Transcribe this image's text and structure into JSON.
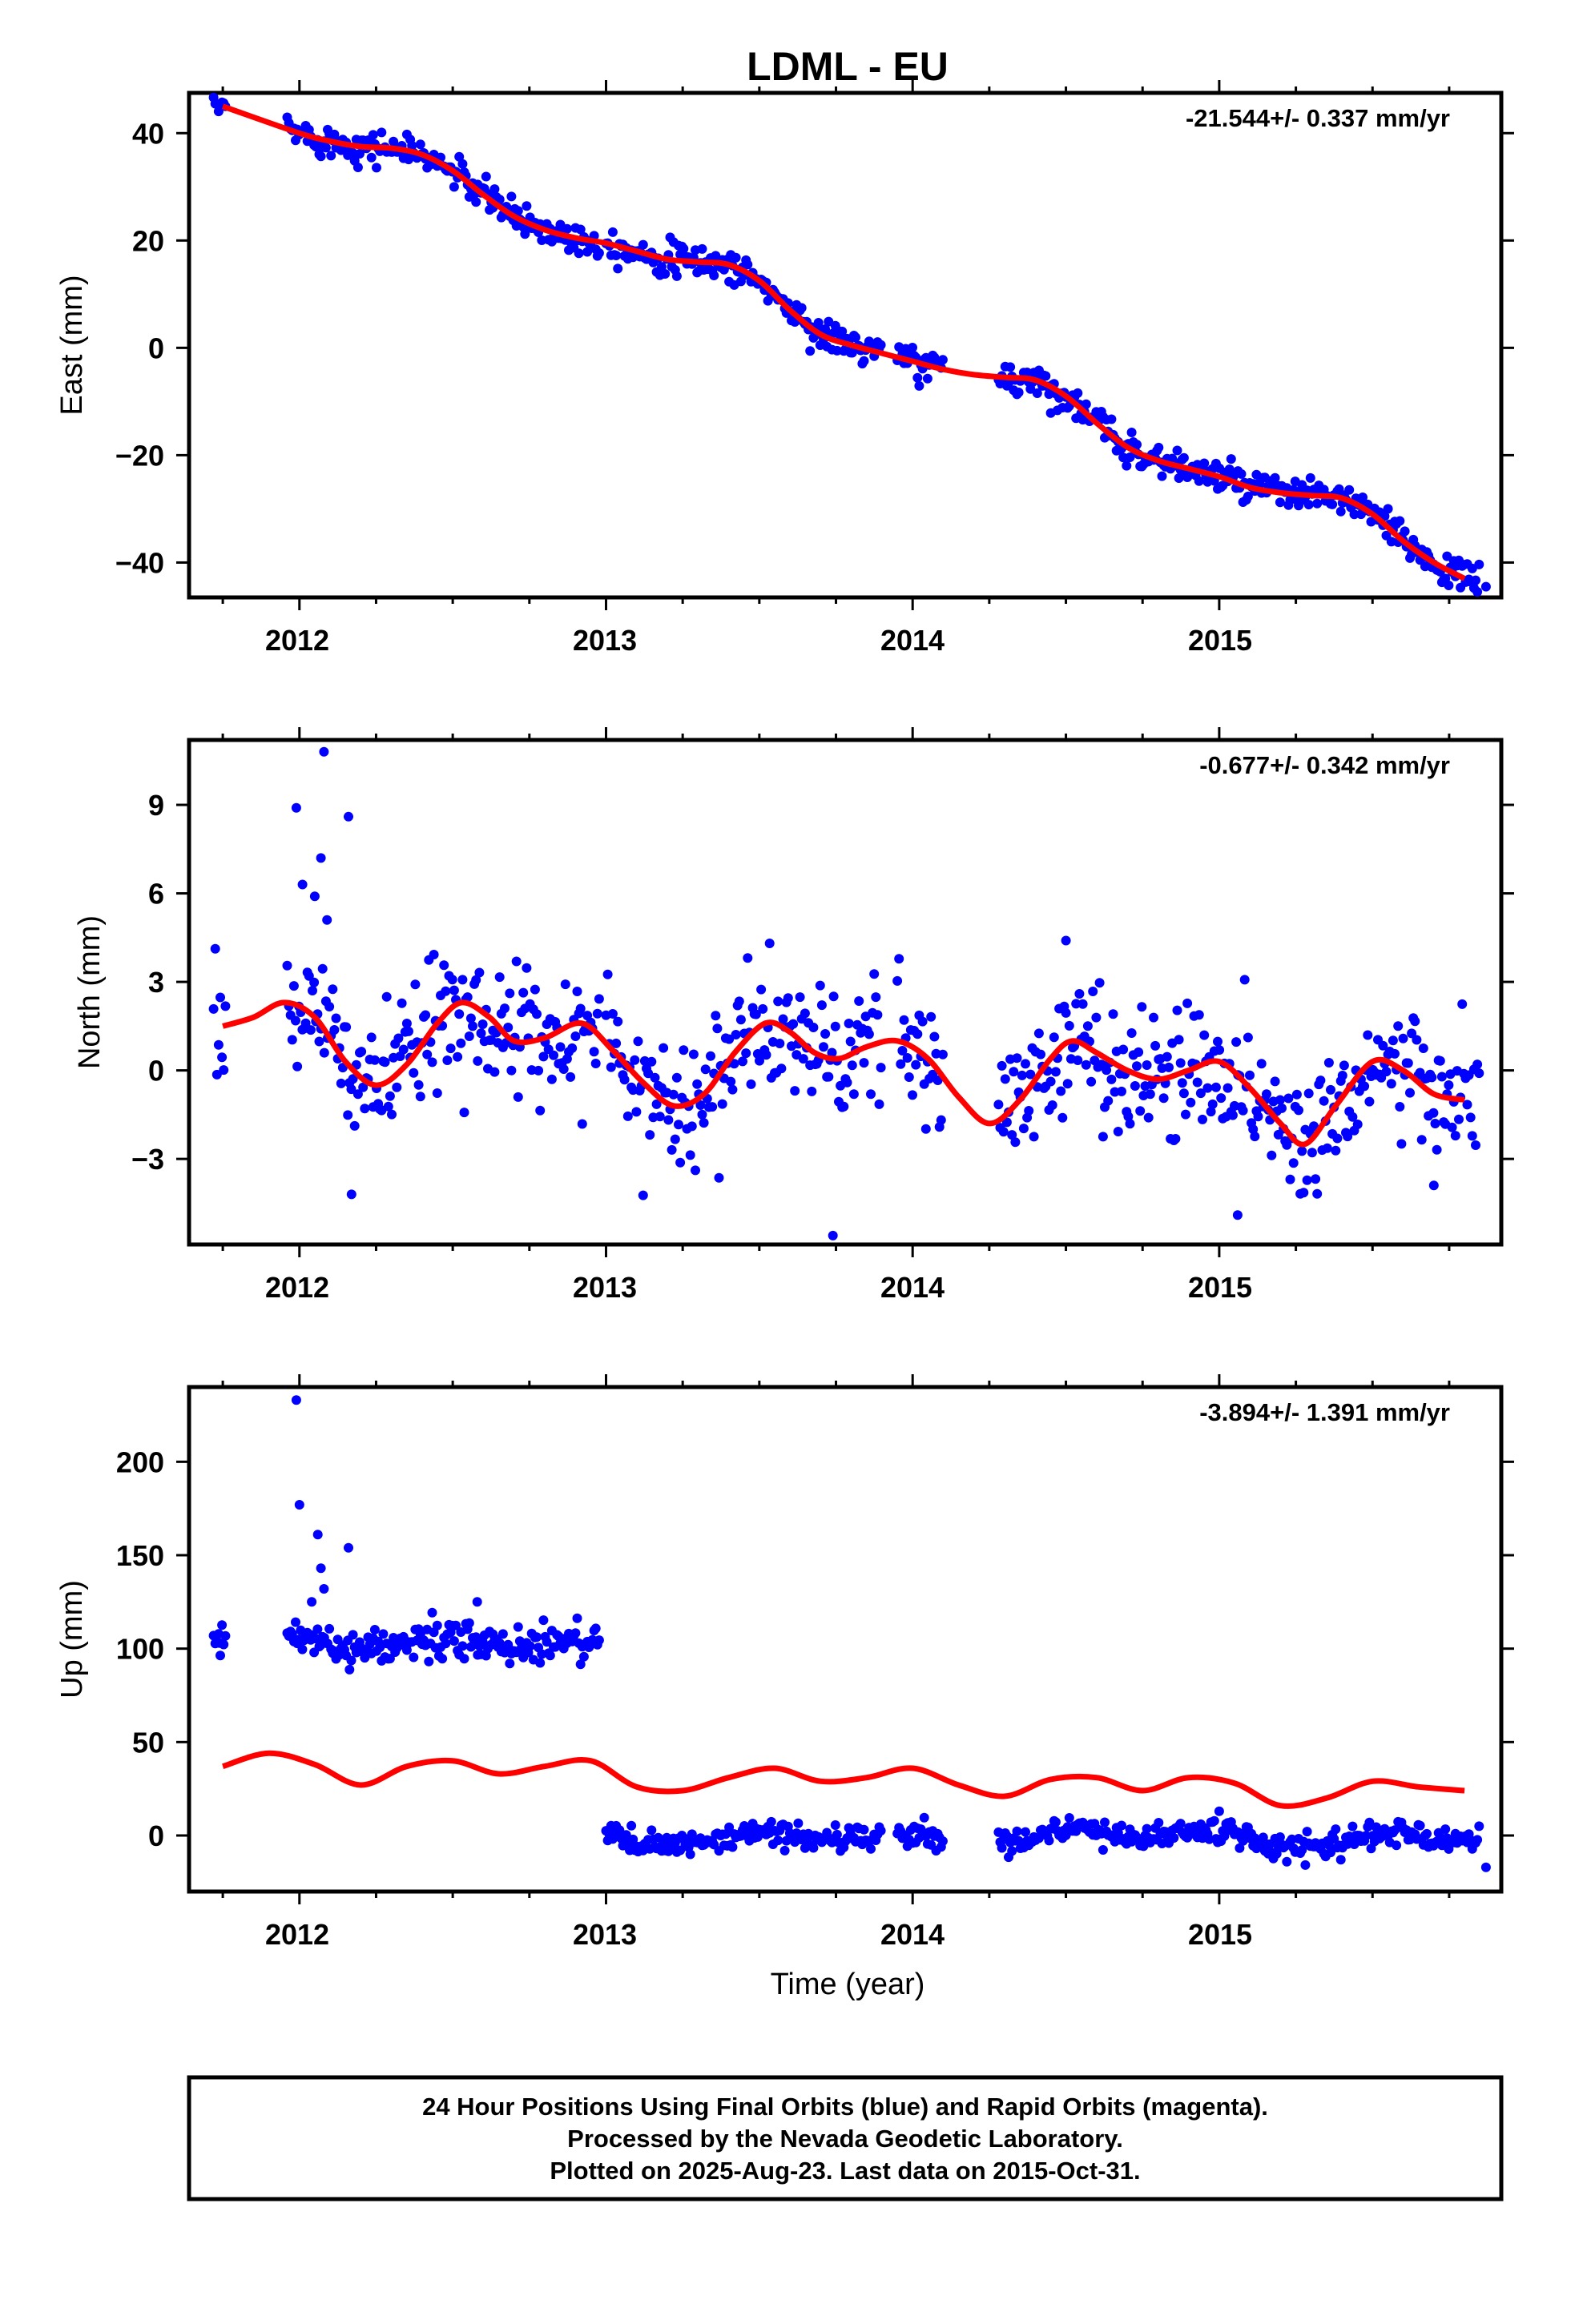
{
  "title": "LDML - EU",
  "colors": {
    "data": "#0000ff",
    "model": "#ff0000",
    "frame": "#000000"
  },
  "x_ticks": [
    "2012",
    "2013",
    "2014",
    "2015"
  ],
  "x_axis_label": "Time (year)",
  "footer": {
    "line1": "24 Hour Positions Using Final Orbits (blue) and Rapid Orbits (magenta).",
    "line2": "Processed by the Nevada Geodetic Laboratory.",
    "line3": "Plotted on 2025-Aug-23. Last data on 2015-Oct-31."
  },
  "chart_data": [
    {
      "type": "scatter",
      "panel": "east",
      "ylabel": "East (mm)",
      "rate_label": "-21.544+/- 0.337 mm/yr",
      "xlim": [
        2011.64,
        2015.92
      ],
      "ylim": [
        -46.5,
        47.5
      ],
      "yticks": [
        40,
        20,
        0,
        -20,
        -40
      ],
      "ytick_labels": [
        "40",
        "20",
        "0",
        "−20",
        "−40"
      ],
      "model": {
        "name": "",
        "x": [
          2011.75,
          2012.0,
          2012.1,
          2012.2,
          2012.3,
          2012.4,
          2012.5,
          2012.6,
          2012.7,
          2012.8,
          2012.9,
          2013.0,
          2013.1,
          2013.2,
          2013.3,
          2013.4,
          2013.5,
          2013.6,
          2013.7,
          2013.8,
          2013.9,
          2014.0,
          2014.1,
          2014.2,
          2014.3,
          2014.4,
          2014.5,
          2014.6,
          2014.7,
          2014.8,
          2014.9,
          2015.0,
          2015.1,
          2015.2,
          2015.3,
          2015.4,
          2015.5,
          2015.6,
          2015.7,
          2015.8
        ],
        "y": [
          45,
          40,
          38.5,
          37.5,
          37.2,
          36,
          33,
          28.5,
          24.5,
          22,
          20.5,
          19.5,
          18,
          16.5,
          16,
          15.5,
          12.5,
          7,
          2.5,
          0.5,
          -1,
          -2.5,
          -4,
          -5,
          -5.5,
          -6,
          -9,
          -14,
          -18.5,
          -21,
          -22.5,
          -24,
          -26,
          -27,
          -27.5,
          -28,
          -31,
          -36,
          -40,
          -43
        ]
      },
      "series": [
        {
          "name": "",
          "segments": [
            [
              2011.72,
              2011.76
            ],
            [
              2011.96,
              2012.98
            ],
            [
              2013.0,
              2013.9
            ],
            [
              2013.95,
              2014.1
            ],
            [
              2014.28,
              2015.85
            ]
          ],
          "noise": 1.5,
          "extra": [
            [
              2015.87,
              -44.5
            ]
          ]
        }
      ]
    },
    {
      "type": "scatter",
      "panel": "north",
      "ylabel": "North (mm)",
      "rate_label": "-0.677+/- 0.342 mm/yr",
      "xlim": [
        2011.64,
        2015.92
      ],
      "ylim": [
        -5.9,
        11.2
      ],
      "yticks": [
        9,
        6,
        3,
        0,
        -3
      ],
      "ytick_labels": [
        "9",
        "6",
        "3",
        "0",
        "−3"
      ],
      "model": {
        "name": "",
        "x": [
          2011.75,
          2011.85,
          2011.95,
          2012.05,
          2012.15,
          2012.25,
          2012.35,
          2012.45,
          2012.53,
          2012.62,
          2012.7,
          2012.8,
          2012.92,
          2013.02,
          2013.12,
          2013.22,
          2013.32,
          2013.42,
          2013.52,
          2013.6,
          2013.68,
          2013.76,
          2013.85,
          2013.95,
          2014.05,
          2014.15,
          2014.25,
          2014.35,
          2014.45,
          2014.52,
          2014.6,
          2014.7,
          2014.8,
          2014.9,
          2015.0,
          2015.1,
          2015.2,
          2015.28,
          2015.38,
          2015.5,
          2015.6,
          2015.7,
          2015.8
        ],
        "y": [
          1.5,
          1.8,
          2.3,
          1.8,
          0.3,
          -0.5,
          0.2,
          1.6,
          2.3,
          1.8,
          1.0,
          1.1,
          1.6,
          0.7,
          -0.4,
          -1.2,
          -0.8,
          0.6,
          1.6,
          1.3,
          0.6,
          0.4,
          0.8,
          1.0,
          0.4,
          -0.9,
          -1.8,
          -1.0,
          0.4,
          1.0,
          0.6,
          0.0,
          -0.3,
          0.0,
          0.3,
          -0.6,
          -1.8,
          -2.5,
          -1.2,
          0.3,
          0.0,
          -0.8,
          -1.0
        ]
      },
      "series": [
        {
          "name": "",
          "segments": [
            [
              2011.72,
              2011.76
            ],
            [
              2011.96,
              2012.98
            ],
            [
              2013.0,
              2013.9
            ],
            [
              2013.95,
              2014.1
            ],
            [
              2014.28,
              2015.85
            ]
          ],
          "noise": 1.1,
          "extra": [
            [
              2012.08,
              10.8
            ],
            [
              2011.99,
              8.9
            ],
            [
              2012.16,
              8.6
            ],
            [
              2012.07,
              7.2
            ],
            [
              2012.01,
              6.3
            ],
            [
              2012.05,
              5.9
            ],
            [
              2012.09,
              5.1
            ],
            [
              2013.74,
              -5.6
            ],
            [
              2014.5,
              4.4
            ],
            [
              2015.06,
              -4.9
            ],
            [
              2012.17,
              -4.2
            ],
            [
              2015.7,
              -3.9
            ]
          ]
        }
      ]
    },
    {
      "type": "scatter",
      "panel": "up",
      "ylabel": "Up (mm)",
      "rate_label": "-3.894+/- 1.391 mm/yr",
      "xlim": [
        2011.64,
        2015.92
      ],
      "ylim": [
        -30,
        240
      ],
      "yticks": [
        200,
        150,
        100,
        50,
        0
      ],
      "ytick_labels": [
        "200",
        "150",
        "100",
        "50",
        "0"
      ],
      "model": {
        "name": "",
        "x": [
          2011.75,
          2011.9,
          2012.05,
          2012.2,
          2012.35,
          2012.5,
          2012.65,
          2012.8,
          2012.95,
          2013.1,
          2013.25,
          2013.4,
          2013.55,
          2013.7,
          2013.85,
          2014.0,
          2014.15,
          2014.3,
          2014.45,
          2014.6,
          2014.75,
          2014.9,
          2015.05,
          2015.2,
          2015.35,
          2015.5,
          2015.65,
          2015.8
        ],
        "y": [
          37,
          44,
          38,
          27,
          37,
          40,
          33,
          37,
          40,
          26,
          24,
          31,
          36,
          29,
          31,
          36,
          27,
          21,
          30,
          31,
          24,
          31,
          28,
          16,
          20,
          29,
          26,
          24
        ]
      },
      "series": [
        {
          "name": "",
          "segments": [
            [
              2011.72,
              2011.76
            ],
            [
              2011.96,
              2012.98
            ]
          ],
          "level": 105,
          "noise": 5,
          "extra": [
            [
              2011.74,
              103
            ],
            [
              2011.99,
              233
            ],
            [
              2012.0,
              177
            ],
            [
              2012.06,
              161
            ],
            [
              2012.16,
              154
            ],
            [
              2012.07,
              143
            ],
            [
              2012.08,
              132
            ],
            [
              2012.04,
              125
            ],
            [
              2012.58,
              125
            ]
          ]
        },
        {
          "name": "",
          "segments": [
            [
              2013.0,
              2013.9
            ],
            [
              2013.95,
              2014.1
            ],
            [
              2014.28,
              2015.85
            ]
          ],
          "level": 0,
          "noise": 3.5,
          "extra": [
            [
              2015.87,
              -17
            ],
            [
              2015.0,
              13
            ]
          ]
        }
      ]
    }
  ]
}
